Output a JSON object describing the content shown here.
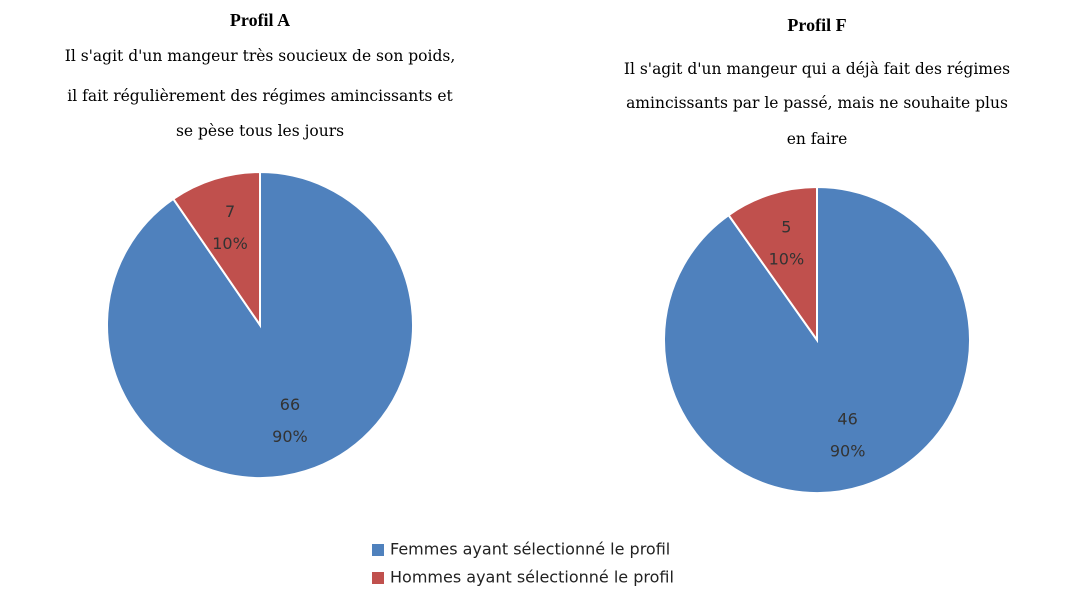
{
  "chart_data": [
    {
      "type": "pie",
      "title": "Profil A",
      "subtitle": [
        "Il s'agit d'un mangeur très soucieux de son poids,",
        "il fait régulièrement des régimes amincissants et",
        "se pèse tous les jours"
      ],
      "categories": [
        "Femmes ayant sélectionné le profil",
        "Hommes ayant sélectionné le profil"
      ],
      "values": [
        66,
        7
      ],
      "percent_labels": [
        "90%",
        "10%"
      ],
      "colors": [
        "#4f81bd",
        "#c0504d"
      ]
    },
    {
      "type": "pie",
      "title": "Profil F",
      "subtitle": [
        "Il s'agit d'un mangeur qui a déjà fait des régimes",
        "amincissants par le passé, mais ne souhaite plus",
        "en faire"
      ],
      "categories": [
        "Femmes ayant sélectionné le profil",
        "Hommes ayant sélectionné le profil"
      ],
      "values": [
        46,
        5
      ],
      "percent_labels": [
        "90%",
        "10%"
      ],
      "colors": [
        "#4f81bd",
        "#c0504d"
      ]
    }
  ]
}
